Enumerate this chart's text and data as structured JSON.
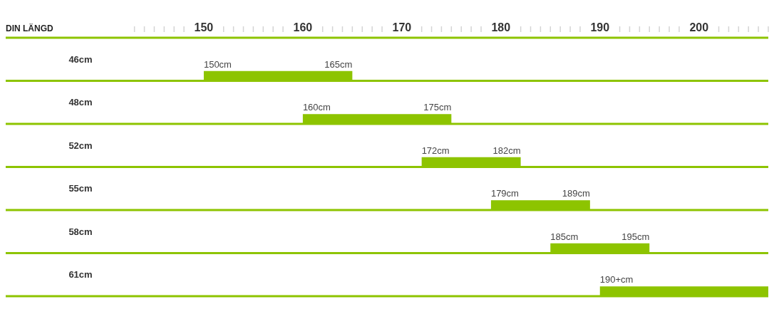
{
  "chart_data": {
    "type": "bar",
    "orientation": "horizontal",
    "xlabel": "DIN LÄNGD",
    "categories": [
      "46cm",
      "48cm",
      "52cm",
      "55cm",
      "58cm",
      "61cm"
    ],
    "base": [
      150,
      160,
      172,
      179,
      185,
      190
    ],
    "values": [
      15,
      15,
      10,
      10,
      10,
      17
    ],
    "color": "#8dc400",
    "xlim": [
      130,
      207
    ],
    "xticks": [
      {
        "value": 143,
        "label": null
      },
      {
        "value": 144,
        "label": null
      },
      {
        "value": 145,
        "label": null
      },
      {
        "value": 146,
        "label": null
      },
      {
        "value": 147,
        "label": null
      },
      {
        "value": 148,
        "label": null
      },
      150,
      {
        "value": 152,
        "label": null
      },
      {
        "value": 153,
        "label": null
      },
      {
        "value": 154,
        "label": null
      },
      {
        "value": 155,
        "label": null
      },
      {
        "value": 156,
        "label": null
      },
      {
        "value": 157,
        "label": null
      },
      {
        "value": 158,
        "label": null
      },
      160,
      {
        "value": 162,
        "label": null
      },
      {
        "value": 163,
        "label": null
      },
      {
        "value": 164,
        "label": null
      },
      {
        "value": 165,
        "label": null
      },
      {
        "value": 166,
        "label": null
      },
      {
        "value": 167,
        "label": null
      },
      {
        "value": 168,
        "label": null
      },
      170,
      {
        "value": 172,
        "label": null
      },
      {
        "value": 173,
        "label": null
      },
      {
        "value": 174,
        "label": null
      },
      {
        "value": 175,
        "label": null
      },
      {
        "value": 176,
        "label": null
      },
      {
        "value": 177,
        "label": null
      },
      {
        "value": 178,
        "label": null
      },
      180,
      {
        "value": 182,
        "label": null
      },
      {
        "value": 183,
        "label": null
      },
      {
        "value": 184,
        "label": null
      },
      {
        "value": 185,
        "label": null
      },
      {
        "value": 186,
        "label": null
      },
      {
        "value": 187,
        "label": null
      },
      {
        "value": 188,
        "label": null
      },
      190,
      {
        "value": 192,
        "label": null
      },
      {
        "value": 193,
        "label": null
      },
      {
        "value": 194,
        "label": null
      },
      {
        "value": 195,
        "label": null
      },
      {
        "value": 196,
        "label": null
      },
      {
        "value": 197,
        "label": null
      },
      {
        "value": 198,
        "label": null
      },
      200,
      {
        "value": 202,
        "label": null
      },
      {
        "value": 203,
        "label": null
      },
      {
        "value": 204,
        "label": null
      },
      {
        "value": 205,
        "label": null
      },
      {
        "value": 206,
        "label": null
      },
      {
        "value": 207,
        "label": null
      }
    ],
    "grid": "y",
    "annotations": [
      "150cm",
      "165cm",
      "160cm",
      "175cm",
      "172cm",
      "182cm",
      "179cm",
      "189cm",
      "185cm",
      "195cm",
      "190+cm"
    ]
  }
}
